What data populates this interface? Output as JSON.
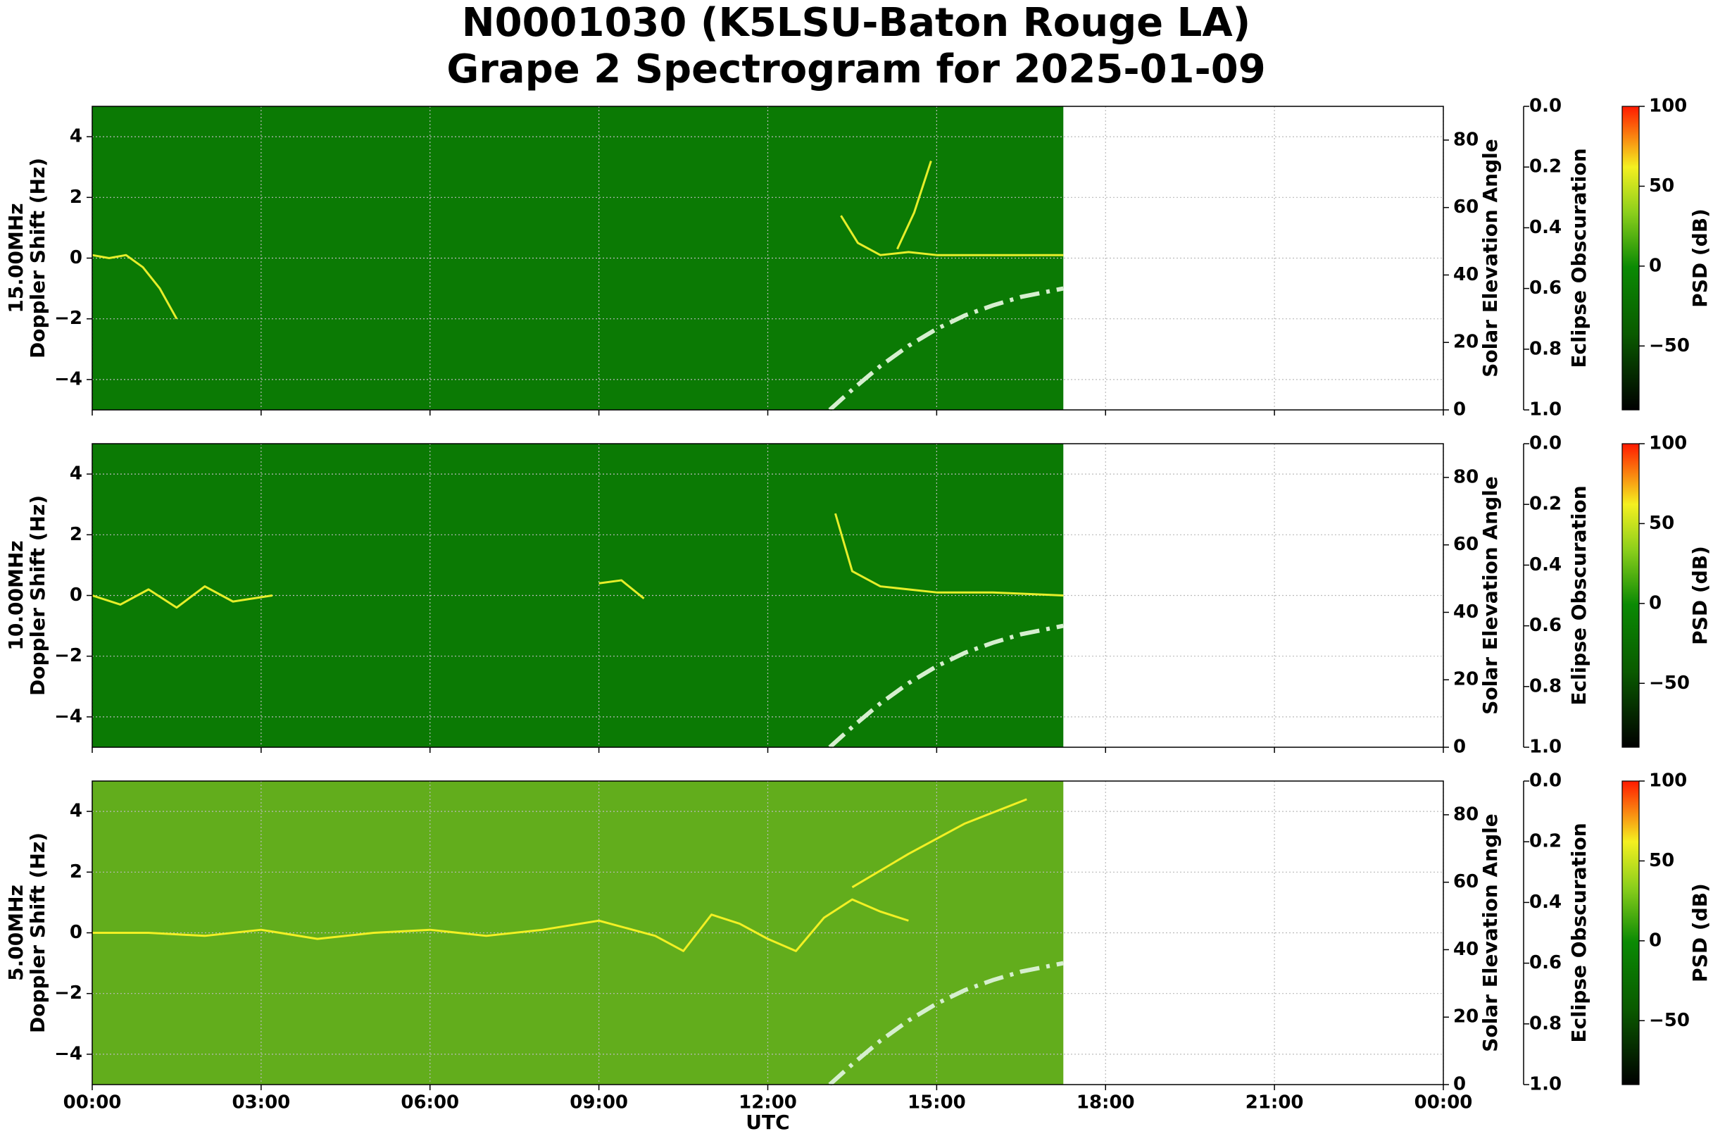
{
  "title": [
    "N0001030 (K5LSU-Baton Rouge LA)",
    "Grape 2 Spectrogram for 2025-01-09"
  ],
  "chart_data": [
    {
      "type": "spectrogram",
      "ylabel": [
        "15.00MHz",
        "Doppler Shift (Hz)"
      ],
      "xlim": [
        0,
        24
      ],
      "xticks": [
        {
          "value": 0,
          "label": "00:00"
        },
        {
          "value": 3,
          "label": "03:00"
        },
        {
          "value": 6,
          "label": "06:00"
        },
        {
          "value": 9,
          "label": "09:00"
        },
        {
          "value": 12,
          "label": "12:00"
        },
        {
          "value": 15,
          "label": "15:00"
        },
        {
          "value": 18,
          "label": "18:00"
        },
        {
          "value": 21,
          "label": "21:00"
        },
        {
          "value": 24,
          "label": "00:00"
        }
      ],
      "ylim": [
        -5,
        5
      ],
      "yticks": [
        {
          "value": -4,
          "label": "−4"
        },
        {
          "value": -2,
          "label": "−2"
        },
        0,
        2,
        4
      ],
      "y2label": "Solar Elevation Angle",
      "y2lim": [
        0,
        90
      ],
      "y2ticks": [
        0,
        20,
        40,
        60,
        80
      ],
      "y3label": "Eclipse Obscuration",
      "y3lim": [
        1,
        0
      ],
      "y3ticks": [
        {
          "value": 0,
          "label": "0.0"
        },
        {
          "value": 0.2,
          "label": "0.2"
        },
        {
          "value": 0.4,
          "label": "0.4"
        },
        {
          "value": 0.6,
          "label": "0.6"
        },
        {
          "value": 0.8,
          "label": "0.8"
        },
        {
          "value": 1,
          "label": "1.0"
        }
      ],
      "clabel": "PSD (dB)",
      "clim": [
        -90,
        100
      ],
      "cticks": [
        {
          "value": -50,
          "label": "−50"
        },
        0,
        50,
        100
      ],
      "grid": true,
      "background": "#0b7a04",
      "data_extent": [
        0,
        17.25
      ],
      "traces": [
        {
          "color": "#e6ee2a",
          "x": [
            0,
            0.3,
            0.6,
            0.9,
            1.2,
            1.5
          ],
          "values": [
            0.1,
            0.0,
            0.1,
            -0.3,
            -1.0,
            -2.0
          ]
        },
        {
          "color": "#e6ee2a",
          "x": [
            13.3,
            13.6,
            14,
            14.5,
            15,
            15.5,
            16,
            16.5,
            17.25
          ],
          "values": [
            1.4,
            0.5,
            0.1,
            0.2,
            0.1,
            0.1,
            0.1,
            0.1,
            0.1
          ]
        },
        {
          "color": "#e6ee2a",
          "x": [
            14.3,
            14.6,
            14.9
          ],
          "values": [
            0.3,
            1.5,
            3.2
          ]
        }
      ],
      "solar_elevation": {
        "color": "#d6efcf",
        "axis": "y2",
        "x": [
          13.1,
          13.5,
          14,
          14.5,
          15,
          15.5,
          16,
          16.5,
          17.25
        ],
        "values": [
          0,
          6,
          13,
          19,
          24,
          28,
          31,
          33.5,
          36
        ]
      }
    },
    {
      "type": "spectrogram",
      "ylabel": [
        "10.00MHz",
        "Doppler Shift (Hz)"
      ],
      "xlim": [
        0,
        24
      ],
      "xticks": [
        {
          "value": 0,
          "label": "00:00"
        },
        {
          "value": 3,
          "label": "03:00"
        },
        {
          "value": 6,
          "label": "06:00"
        },
        {
          "value": 9,
          "label": "09:00"
        },
        {
          "value": 12,
          "label": "12:00"
        },
        {
          "value": 15,
          "label": "15:00"
        },
        {
          "value": 18,
          "label": "18:00"
        },
        {
          "value": 21,
          "label": "21:00"
        },
        {
          "value": 24,
          "label": "00:00"
        }
      ],
      "ylim": [
        -5,
        5
      ],
      "yticks": [
        {
          "value": -4,
          "label": "−4"
        },
        {
          "value": -2,
          "label": "−2"
        },
        0,
        2,
        4
      ],
      "y2label": "Solar Elevation Angle",
      "y2lim": [
        0,
        90
      ],
      "y2ticks": [
        0,
        20,
        40,
        60,
        80
      ],
      "y3label": "Eclipse Obscuration",
      "y3lim": [
        1,
        0
      ],
      "y3ticks": [
        {
          "value": 0,
          "label": "0.0"
        },
        {
          "value": 0.2,
          "label": "0.2"
        },
        {
          "value": 0.4,
          "label": "0.4"
        },
        {
          "value": 0.6,
          "label": "0.6"
        },
        {
          "value": 0.8,
          "label": "0.8"
        },
        {
          "value": 1,
          "label": "1.0"
        }
      ],
      "clabel": "PSD (dB)",
      "clim": [
        -90,
        100
      ],
      "cticks": [
        {
          "value": -50,
          "label": "−50"
        },
        0,
        50,
        100
      ],
      "grid": true,
      "background": "#0b7a04",
      "data_extent": [
        0,
        17.25
      ],
      "traces": [
        {
          "color": "#e6ee2a",
          "x": [
            0,
            0.5,
            1,
            1.5,
            2,
            2.5,
            3.2
          ],
          "values": [
            0,
            -0.3,
            0.2,
            -0.4,
            0.3,
            -0.2,
            0
          ]
        },
        {
          "color": "#e6ee2a",
          "x": [
            9.0,
            9.4,
            9.8
          ],
          "values": [
            0.4,
            0.5,
            -0.1
          ]
        },
        {
          "color": "#e6ee2a",
          "x": [
            13.2,
            13.5,
            14,
            15,
            16,
            17.25
          ],
          "values": [
            2.7,
            0.8,
            0.3,
            0.1,
            0.1,
            0
          ]
        }
      ],
      "solar_elevation": {
        "color": "#d6efcf",
        "axis": "y2",
        "x": [
          13.1,
          13.5,
          14,
          14.5,
          15,
          15.5,
          16,
          16.5,
          17.25
        ],
        "values": [
          0,
          6,
          13,
          19,
          24,
          28,
          31,
          33.5,
          36
        ]
      }
    },
    {
      "type": "spectrogram",
      "ylabel": [
        "5.00MHz",
        "Doppler Shift (Hz)"
      ],
      "xlabel": "UTC",
      "xlim": [
        0,
        24
      ],
      "xticks": [
        {
          "value": 0,
          "label": "00:00"
        },
        {
          "value": 3,
          "label": "03:00"
        },
        {
          "value": 6,
          "label": "06:00"
        },
        {
          "value": 9,
          "label": "09:00"
        },
        {
          "value": 12,
          "label": "12:00"
        },
        {
          "value": 15,
          "label": "15:00"
        },
        {
          "value": 18,
          "label": "18:00"
        },
        {
          "value": 21,
          "label": "21:00"
        },
        {
          "value": 24,
          "label": "00:00"
        }
      ],
      "ylim": [
        -5,
        5
      ],
      "yticks": [
        {
          "value": -4,
          "label": "−4"
        },
        {
          "value": -2,
          "label": "−2"
        },
        0,
        2,
        4
      ],
      "y2label": "Solar Elevation Angle",
      "y2lim": [
        0,
        90
      ],
      "y2ticks": [
        0,
        20,
        40,
        60,
        80
      ],
      "y3label": "Eclipse Obscuration",
      "y3lim": [
        1,
        0
      ],
      "y3ticks": [
        {
          "value": 0,
          "label": "0.0"
        },
        {
          "value": 0.2,
          "label": "0.2"
        },
        {
          "value": 0.4,
          "label": "0.4"
        },
        {
          "value": 0.6,
          "label": "0.6"
        },
        {
          "value": 0.8,
          "label": "0.8"
        },
        {
          "value": 1,
          "label": "1.0"
        }
      ],
      "clabel": "PSD (dB)",
      "clim": [
        -90,
        100
      ],
      "cticks": [
        {
          "value": -50,
          "label": "−50"
        },
        0,
        50,
        100
      ],
      "grid": true,
      "background": "#62ad1c",
      "data_extent": [
        0,
        17.25
      ],
      "traces": [
        {
          "color": "#f2f024",
          "x": [
            0,
            1,
            2,
            3,
            4,
            5,
            6,
            7,
            8,
            9,
            10,
            10.5,
            11,
            11.5,
            12,
            12.5,
            13,
            13.5,
            14,
            14.5
          ],
          "values": [
            0,
            0,
            -0.1,
            0.1,
            -0.2,
            0,
            0.1,
            -0.1,
            0.1,
            0.4,
            -0.1,
            -0.6,
            0.6,
            0.3,
            -0.2,
            -0.6,
            0.5,
            1.1,
            0.7,
            0.4
          ]
        },
        {
          "color": "#f2f024",
          "x": [
            13.5,
            14.5,
            15.5,
            16.6
          ],
          "values": [
            1.5,
            2.6,
            3.6,
            4.4
          ]
        }
      ],
      "solar_elevation": {
        "color": "#d6efcf",
        "axis": "y2",
        "x": [
          13.1,
          13.5,
          14,
          14.5,
          15,
          15.5,
          16,
          16.5,
          17.25
        ],
        "values": [
          0,
          6,
          13,
          19,
          24,
          28,
          31,
          33.5,
          36
        ]
      }
    }
  ]
}
